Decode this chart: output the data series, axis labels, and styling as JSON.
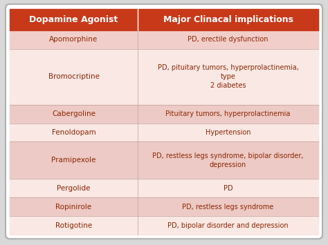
{
  "title_col1": "Dopamine Agonist",
  "title_col2": "Major Clinacal implications",
  "header_bg": "#C8391A",
  "header_text_color": "#FFFFFF",
  "rows": [
    {
      "drug": "Apomorphine",
      "implication": "PD, erectile dysfunction",
      "bg": "#F2CECA"
    },
    {
      "drug": "Bromocriptine",
      "implication": "PD, pituitary tumors, hyperprolactinemia,\ntype\n2 diabetes",
      "bg": "#FAE8E5"
    },
    {
      "drug": "Cabergoline",
      "implication": "Pituitary tumors, hyperprolactinemia",
      "bg": "#EDCAC5"
    },
    {
      "drug": "Fenoldopam",
      "implication": "Hypertension",
      "bg": "#FAE8E5"
    },
    {
      "drug": "Pramipexole",
      "implication": "PD, restless legs syndrome, bipolar disorder,\ndepression",
      "bg": "#EDCAC5"
    },
    {
      "drug": "Pergolide",
      "implication": "PD",
      "bg": "#FAE8E5"
    },
    {
      "drug": "Ropinirole",
      "implication": "PD, restless legs syndrome",
      "bg": "#EDCAC5"
    },
    {
      "drug": "Rotigotine",
      "implication": "PD, bipolar disorder and depression",
      "bg": "#FAE8E5"
    }
  ],
  "text_color": "#8B2500",
  "fig_bg": "#D8D8D8",
  "border_color": "#B0B0B0",
  "table_bg": "#FFFFFF",
  "divider_color": "#C8A8A0",
  "col_split": 0.415
}
